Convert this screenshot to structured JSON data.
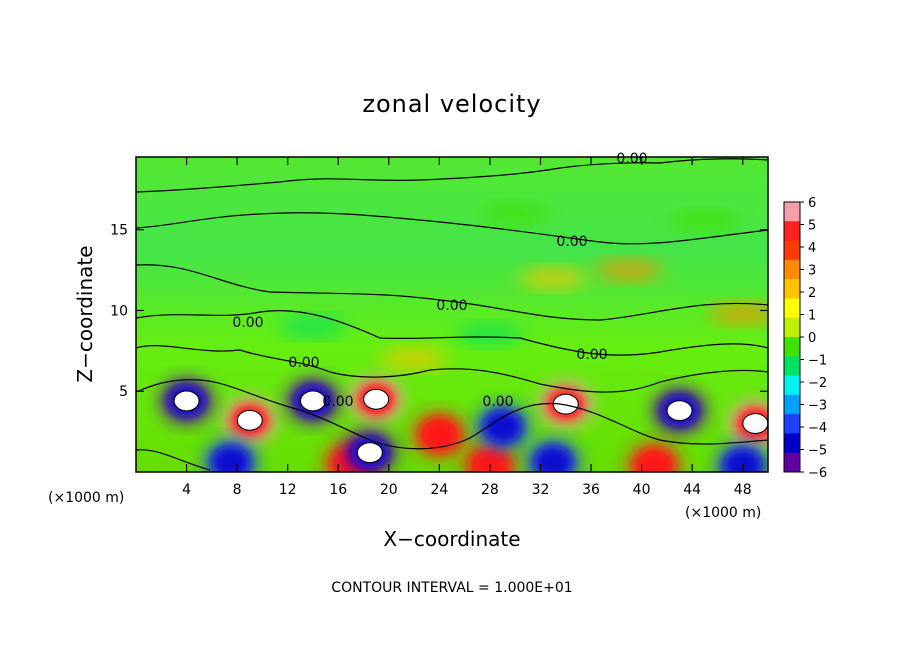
{
  "chart_data": {
    "type": "heatmap",
    "title": "zonal velocity",
    "xlabel": "X−coordinate",
    "ylabel": "Z−coordinate",
    "x_unit_left": "(×1000 m)",
    "x_unit_right": "(×1000 m)",
    "footer": "CONTOUR INTERVAL = 1.000E+01",
    "xlim": [
      0,
      50
    ],
    "ylim": [
      0,
      19.5
    ],
    "x_ticks": [
      4,
      8,
      12,
      16,
      20,
      24,
      28,
      32,
      36,
      40,
      44,
      48
    ],
    "x_tick_labels": [
      "4",
      "8",
      "12",
      "16",
      "20",
      "24",
      "28",
      "32",
      "36",
      "40",
      "44",
      "48"
    ],
    "y_ticks": [
      5,
      10,
      15
    ],
    "y_tick_labels": [
      "5",
      "10",
      "15"
    ],
    "contour_labels": [
      "0.00",
      "0.00",
      "0.00",
      "0.00",
      "0.00",
      "0.00",
      "0.00",
      "0.00"
    ],
    "colorbar": {
      "range": [
        -6,
        6
      ],
      "tick_values": [
        6,
        5,
        4,
        3,
        2,
        1,
        0,
        -1,
        -2,
        -3,
        -4,
        -5,
        -6
      ],
      "tick_labels": [
        "6",
        "5",
        "4",
        "3",
        "2",
        "1",
        "0",
        "−1",
        "−2",
        "−3",
        "−4",
        "−5",
        "−6"
      ],
      "colors": [
        "#f2a0a8",
        "#ff2020",
        "#ff3a00",
        "#ff8a00",
        "#ffc400",
        "#ffff00",
        "#c0f000",
        "#40e000",
        "#00e060",
        "#00f0f0",
        "#00a0ff",
        "#2040ff",
        "#0000c8",
        "#6000a0"
      ]
    },
    "features": [
      {
        "kind": "positive_cell",
        "x": 9,
        "z": 3.2,
        "value": 6
      },
      {
        "kind": "positive_cell",
        "x": 19,
        "z": 4.5,
        "value": 6
      },
      {
        "kind": "positive_cell",
        "x": 34,
        "z": 4.2,
        "value": 6
      },
      {
        "kind": "positive_cell",
        "x": 49,
        "z": 3.0,
        "value": 6
      },
      {
        "kind": "positive_cell",
        "x": 24,
        "z": 2.3,
        "value": 5
      },
      {
        "kind": "positive_cell",
        "x": 17,
        "z": 0.5,
        "value": 5
      },
      {
        "kind": "positive_cell",
        "x": 28,
        "z": 0.4,
        "value": 5
      },
      {
        "kind": "positive_cell",
        "x": 41,
        "z": 0.4,
        "value": 5
      },
      {
        "kind": "negative_cell",
        "x": 4,
        "z": 4.4,
        "value": -6
      },
      {
        "kind": "negative_cell",
        "x": 14,
        "z": 4.4,
        "value": -6
      },
      {
        "kind": "negative_cell",
        "x": 43,
        "z": 3.8,
        "value": -6
      },
      {
        "kind": "negative_cell",
        "x": 29,
        "z": 2.8,
        "value": -5
      },
      {
        "kind": "negative_cell",
        "x": 18.5,
        "z": 1.2,
        "value": -6
      },
      {
        "kind": "negative_cell",
        "x": 7.5,
        "z": 0.6,
        "value": -5
      },
      {
        "kind": "negative_cell",
        "x": 33,
        "z": 0.6,
        "value": -5
      },
      {
        "kind": "negative_cell",
        "x": 48,
        "z": 0.4,
        "value": -5
      },
      {
        "kind": "weak_negative",
        "x": 28,
        "z": 8.5,
        "value": -2
      },
      {
        "kind": "weak_negative",
        "x": 14,
        "z": 9.0,
        "value": -2
      },
      {
        "kind": "weak_negative",
        "x": 45,
        "z": 15.5,
        "value": -1
      },
      {
        "kind": "weak_negative",
        "x": 30,
        "z": 16.0,
        "value": -1
      },
      {
        "kind": "weak_positive",
        "x": 33,
        "z": 12.0,
        "value": 2
      },
      {
        "kind": "weak_positive",
        "x": 39,
        "z": 12.5,
        "value": 3
      },
      {
        "kind": "weak_positive",
        "x": 22,
        "z": 7.0,
        "value": 2
      },
      {
        "kind": "weak_positive",
        "x": 48,
        "z": 9.8,
        "value": 3
      }
    ]
  }
}
